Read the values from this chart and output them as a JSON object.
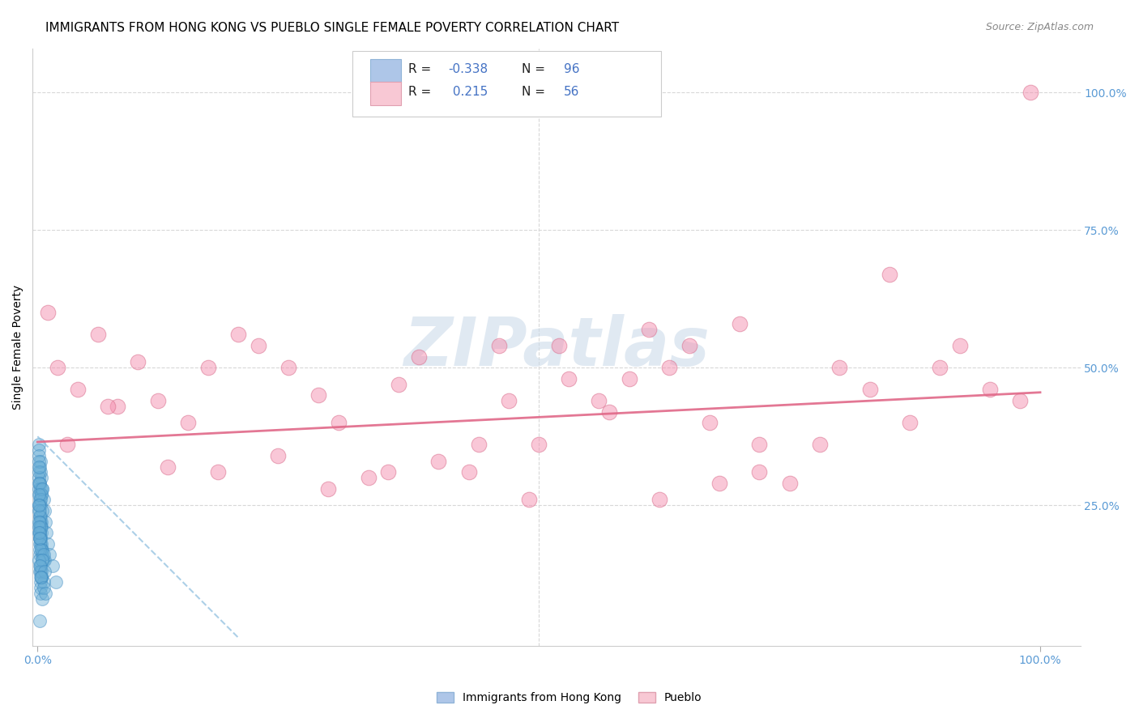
{
  "title": "IMMIGRANTS FROM HONG KONG VS PUEBLO SINGLE FEMALE POVERTY CORRELATION CHART",
  "source": "Source: ZipAtlas.com",
  "ylabel": "Single Female Poverty",
  "watermark": "ZIPatlas",
  "watermark_color": "#c8d8e8",
  "legend_R_blue": "-0.338",
  "legend_N_blue": "96",
  "legend_R_pink": "0.215",
  "legend_N_pink": "56",
  "legend_label_blue": "Immigrants from Hong Kong",
  "legend_label_pink": "Pueblo",
  "blue_scatter": {
    "color": "#6aaed6",
    "edge_color": "#3a88c0",
    "alpha": 0.45,
    "size": 130,
    "x": [
      0.001,
      0.002,
      0.001,
      0.003,
      0.002,
      0.001,
      0.004,
      0.002,
      0.003,
      0.001,
      0.005,
      0.002,
      0.001,
      0.003,
      0.002,
      0.004,
      0.001,
      0.002,
      0.003,
      0.001,
      0.006,
      0.002,
      0.001,
      0.003,
      0.004,
      0.002,
      0.005,
      0.001,
      0.002,
      0.003,
      0.007,
      0.002,
      0.001,
      0.003,
      0.004,
      0.005,
      0.002,
      0.001,
      0.003,
      0.002,
      0.008,
      0.003,
      0.002,
      0.004,
      0.001,
      0.003,
      0.002,
      0.005,
      0.004,
      0.001,
      0.009,
      0.002,
      0.003,
      0.004,
      0.001,
      0.005,
      0.002,
      0.003,
      0.006,
      0.001,
      0.01,
      0.003,
      0.002,
      0.004,
      0.005,
      0.002,
      0.001,
      0.003,
      0.004,
      0.007,
      0.012,
      0.004,
      0.002,
      0.005,
      0.003,
      0.006,
      0.002,
      0.003,
      0.001,
      0.004,
      0.015,
      0.003,
      0.002,
      0.005,
      0.004,
      0.006,
      0.002,
      0.003,
      0.007,
      0.004,
      0.018,
      0.005,
      0.003,
      0.006,
      0.008,
      0.002
    ],
    "y": [
      0.36,
      0.32,
      0.28,
      0.33,
      0.29,
      0.35,
      0.3,
      0.27,
      0.31,
      0.34,
      0.28,
      0.26,
      0.3,
      0.25,
      0.29,
      0.27,
      0.33,
      0.24,
      0.28,
      0.31,
      0.26,
      0.23,
      0.29,
      0.22,
      0.27,
      0.25,
      0.28,
      0.32,
      0.21,
      0.26,
      0.24,
      0.2,
      0.25,
      0.23,
      0.22,
      0.24,
      0.19,
      0.27,
      0.21,
      0.2,
      0.22,
      0.18,
      0.23,
      0.2,
      0.24,
      0.19,
      0.22,
      0.17,
      0.21,
      0.25,
      0.2,
      0.16,
      0.21,
      0.18,
      0.22,
      0.16,
      0.2,
      0.19,
      0.15,
      0.21,
      0.18,
      0.14,
      0.19,
      0.17,
      0.16,
      0.18,
      0.2,
      0.13,
      0.17,
      0.15,
      0.16,
      0.12,
      0.17,
      0.15,
      0.14,
      0.16,
      0.19,
      0.11,
      0.15,
      0.13,
      0.14,
      0.1,
      0.13,
      0.15,
      0.12,
      0.11,
      0.14,
      0.09,
      0.13,
      0.12,
      0.11,
      0.08,
      0.12,
      0.1,
      0.09,
      0.04
    ]
  },
  "pink_scatter": {
    "color": "#f490b0",
    "edge_color": "#d86888",
    "alpha": 0.5,
    "size": 180,
    "x": [
      0.01,
      0.02,
      0.04,
      0.06,
      0.08,
      0.1,
      0.12,
      0.15,
      0.17,
      0.2,
      0.22,
      0.25,
      0.28,
      0.3,
      0.33,
      0.36,
      0.4,
      0.43,
      0.46,
      0.49,
      0.5,
      0.53,
      0.56,
      0.59,
      0.61,
      0.63,
      0.65,
      0.67,
      0.7,
      0.72,
      0.75,
      0.78,
      0.8,
      0.83,
      0.85,
      0.87,
      0.9,
      0.92,
      0.95,
      0.98,
      0.03,
      0.07,
      0.13,
      0.18,
      0.24,
      0.29,
      0.35,
      0.38,
      0.44,
      0.47,
      0.52,
      0.57,
      0.62,
      0.68,
      0.72,
      0.99
    ],
    "y": [
      0.6,
      0.5,
      0.46,
      0.56,
      0.43,
      0.51,
      0.44,
      0.4,
      0.5,
      0.56,
      0.54,
      0.5,
      0.45,
      0.4,
      0.3,
      0.47,
      0.33,
      0.31,
      0.54,
      0.26,
      0.36,
      0.48,
      0.44,
      0.48,
      0.57,
      0.5,
      0.54,
      0.4,
      0.58,
      0.31,
      0.29,
      0.36,
      0.5,
      0.46,
      0.67,
      0.4,
      0.5,
      0.54,
      0.46,
      0.44,
      0.36,
      0.43,
      0.32,
      0.31,
      0.34,
      0.28,
      0.31,
      0.52,
      0.36,
      0.44,
      0.54,
      0.42,
      0.26,
      0.29,
      0.36,
      1.0
    ]
  },
  "blue_trendline": {
    "x_start": 0.0,
    "y_start": 0.375,
    "x_end": 0.2,
    "y_end": 0.01,
    "color": "#90c0e0",
    "linestyle": "dashed",
    "linewidth": 1.5,
    "alpha": 0.75
  },
  "pink_trendline": {
    "x_start": 0.0,
    "y_start": 0.365,
    "x_end": 1.0,
    "y_end": 0.455,
    "color": "#e06888",
    "linestyle": "solid",
    "linewidth": 2.0,
    "alpha": 0.9
  },
  "grid_color": "#d8d8d8",
  "bg_color": "#ffffff",
  "title_fontsize": 11,
  "source_fontsize": 9,
  "axis_label_fontsize": 10,
  "tick_label_fontsize": 10,
  "tick_color": "#5b9bd5",
  "xlim": [
    -0.005,
    1.04
  ],
  "ylim": [
    -0.005,
    1.08
  ]
}
